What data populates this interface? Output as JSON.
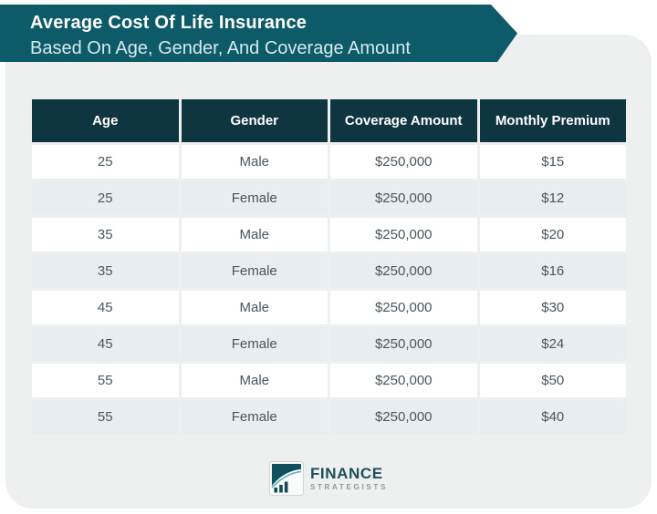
{
  "banner": {
    "title": "Average Cost Of Life Insurance",
    "subtitle": "Based On Age, Gender, And Coverage Amount"
  },
  "table": {
    "columns": [
      "Age",
      "Gender",
      "Coverage Amount",
      "Monthly Premium"
    ],
    "rows": [
      [
        "25",
        "Male",
        "$250,000",
        "$15"
      ],
      [
        "25",
        "Female",
        "$250,000",
        "$12"
      ],
      [
        "35",
        "Male",
        "$250,000",
        "$20"
      ],
      [
        "35",
        "Female",
        "$250,000",
        "$16"
      ],
      [
        "45",
        "Male",
        "$250,000",
        "$30"
      ],
      [
        "45",
        "Female",
        "$250,000",
        "$24"
      ],
      [
        "55",
        "Male",
        "$250,000",
        "$50"
      ],
      [
        "55",
        "Female",
        "$250,000",
        "$40"
      ]
    ]
  },
  "logo": {
    "name": "FINANCE",
    "tagline": "STRATEGISTS",
    "icon": "bar-chart-arrow-icon"
  },
  "colors": {
    "banner_teal": "#0d5a68",
    "header_dark_teal": "#0e3540",
    "card_background": "#eef0f0",
    "alt_row": "#e6eef1",
    "row_text": "#4a565e",
    "logo_navy": "#1d4f59",
    "logo_gray": "#909a9e"
  },
  "chart_data": {
    "type": "table",
    "title": "Average Cost Of Life Insurance Based On Age, Gender, And Coverage Amount",
    "columns": [
      "Age",
      "Gender",
      "Coverage Amount",
      "Monthly Premium"
    ],
    "rows": [
      {
        "age": 25,
        "gender": "Male",
        "coverage_amount": "$250,000",
        "monthly_premium": "$15"
      },
      {
        "age": 25,
        "gender": "Female",
        "coverage_amount": "$250,000",
        "monthly_premium": "$12"
      },
      {
        "age": 35,
        "gender": "Male",
        "coverage_amount": "$250,000",
        "monthly_premium": "$20"
      },
      {
        "age": 35,
        "gender": "Female",
        "coverage_amount": "$250,000",
        "monthly_premium": "$16"
      },
      {
        "age": 45,
        "gender": "Male",
        "coverage_amount": "$250,000",
        "monthly_premium": "$30"
      },
      {
        "age": 45,
        "gender": "Female",
        "coverage_amount": "$250,000",
        "monthly_premium": "$24"
      },
      {
        "age": 55,
        "gender": "Male",
        "coverage_amount": "$250,000",
        "monthly_premium": "$50"
      },
      {
        "age": 55,
        "gender": "Female",
        "coverage_amount": "$250,000",
        "monthly_premium": "$40"
      }
    ]
  }
}
